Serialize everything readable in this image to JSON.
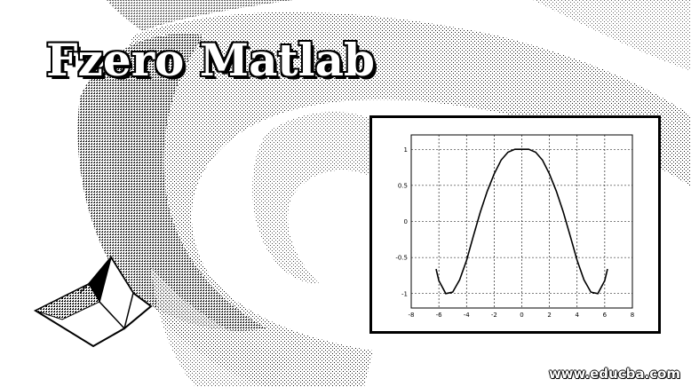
{
  "banner": {
    "title": "Fzero Matlab",
    "watermark": "www.educba.com",
    "logo_icon": "matlab-membrane-logo"
  },
  "chart_data": {
    "type": "line",
    "title": "",
    "xlabel": "",
    "ylabel": "",
    "xlim": [
      -8,
      8
    ],
    "ylim": [
      -1.2,
      1.2
    ],
    "grid": true,
    "xticks": [
      -8,
      -6,
      -4,
      -2,
      0,
      2,
      4,
      6,
      8
    ],
    "xtick_labels": [
      "-8",
      "-6",
      "-4",
      "-2",
      "0",
      "2",
      "4",
      "6",
      "8"
    ],
    "yticks": [
      -1,
      -0.5,
      0,
      0.5,
      1
    ],
    "ytick_labels": [
      "-1",
      "-0.5",
      "0",
      "0.5",
      "1"
    ],
    "series": [
      {
        "x": [
          -6.2,
          -6.0,
          -5.5,
          -5.0,
          -4.5,
          -4.0,
          -3.5,
          -3.0,
          -2.5,
          -2.0,
          -1.5,
          -1.0,
          -0.5,
          0.0,
          0.5,
          1.0,
          1.5,
          2.0,
          2.5,
          3.0,
          3.5,
          4.0,
          4.5,
          5.0,
          5.5,
          6.0,
          6.2
        ],
        "y": [
          -0.66,
          -0.82,
          -1.0,
          -0.98,
          -0.81,
          -0.54,
          -0.2,
          0.13,
          0.42,
          0.66,
          0.85,
          0.96,
          1.0,
          1.0,
          1.0,
          0.96,
          0.85,
          0.66,
          0.42,
          0.13,
          -0.2,
          -0.54,
          -0.81,
          -0.98,
          -1.0,
          -0.82,
          -0.66
        ],
        "color": "#000000"
      }
    ]
  }
}
